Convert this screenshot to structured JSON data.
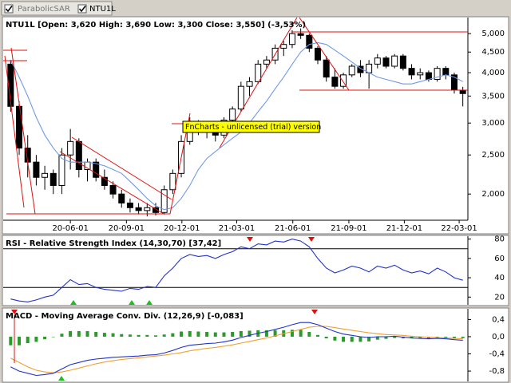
{
  "toolbar_checked": [
    true,
    true
  ],
  "watermark": "FnCharts - unlicensed (trial) version",
  "chart_data": [
    {
      "type": "candlestick",
      "title": "NTU1L [Open: 3,620  High: 3,690  Low: 3,300  Close: 3,550] (-3,53%)",
      "x": [
        "2020-02-24",
        "2020-03-09",
        "2020-03-23",
        "2020-04-06",
        "2020-04-20",
        "2020-05-04",
        "2020-05-18",
        "2020-06-01",
        "2020-06-15",
        "2020-06-29",
        "2020-07-13",
        "2020-07-27",
        "2020-08-10",
        "2020-08-24",
        "2020-09-07",
        "2020-09-21",
        "2020-10-05",
        "2020-10-19",
        "2020-11-02",
        "2020-11-16",
        "2020-11-30",
        "2020-12-14",
        "2020-12-28",
        "2021-01-11",
        "2021-01-25",
        "2021-02-08",
        "2021-02-22",
        "2021-03-08",
        "2021-03-22",
        "2021-04-05",
        "2021-04-19",
        "2021-05-03",
        "2021-05-17",
        "2021-05-31",
        "2021-06-14",
        "2021-06-28",
        "2021-07-12",
        "2021-07-26",
        "2021-08-09",
        "2021-08-23",
        "2021-09-06",
        "2021-09-20",
        "2021-10-04",
        "2021-10-18",
        "2021-11-01",
        "2021-11-15",
        "2021-11-29",
        "2021-12-13",
        "2021-12-27",
        "2022-01-10",
        "2022-01-24",
        "2022-02-07",
        "2022-02-21",
        "2022-03-07"
      ],
      "xlim": [
        "2020-02-17",
        "2022-03-14"
      ],
      "xticks": [
        {
          "value": "2020-06-01",
          "label": "20-06-01"
        },
        {
          "value": "2020-09-01",
          "label": "20-09-01"
        },
        {
          "value": "2020-12-01",
          "label": "20-12-01"
        },
        {
          "value": "2021-03-01",
          "label": "21-03-01"
        },
        {
          "value": "2021-06-01",
          "label": "21-06-01"
        },
        {
          "value": "2021-09-01",
          "label": "21-09-01"
        },
        {
          "value": "2021-12-01",
          "label": "21-12-01"
        },
        {
          "value": "2022-03-01",
          "label": "22-03-01"
        }
      ],
      "log_scale": true,
      "ylim": [
        1730,
        5480
      ],
      "yticks": [
        {
          "value": 2000,
          "label": "2,000"
        },
        {
          "value": 2500,
          "label": "2,500"
        },
        {
          "value": 3000,
          "label": "3,000"
        },
        {
          "value": 3500,
          "label": "3,500"
        },
        {
          "value": 4000,
          "label": "4,000"
        },
        {
          "value": 4500,
          "label": "4,500"
        },
        {
          "value": 5000,
          "label": "5,000"
        }
      ],
      "series": [
        {
          "name": "NTU1L",
          "color": "#000000",
          "open": [
            4200,
            3300,
            2600,
            2400,
            2200,
            2250,
            2100,
            2500,
            2700,
            2300,
            2400,
            2200,
            2100,
            2000,
            1900,
            1850,
            1820,
            1850,
            1800,
            2050,
            2250,
            2700,
            2900,
            2850,
            2900,
            2800,
            3050,
            3250,
            3700,
            3800,
            4200,
            4300,
            4600,
            4700,
            5000,
            4950,
            4600,
            4300,
            3900,
            3700,
            3950,
            4150,
            4000,
            4200,
            4350,
            4150,
            4400,
            4100,
            3950,
            4000,
            3850,
            4100,
            3950,
            3620
          ],
          "high": [
            4300,
            3400,
            2800,
            2500,
            2350,
            2300,
            2600,
            2900,
            2750,
            2450,
            2450,
            2300,
            2150,
            2050,
            1950,
            1900,
            1900,
            1900,
            2100,
            2300,
            2800,
            3100,
            3050,
            2950,
            3000,
            3100,
            3300,
            3800,
            3900,
            4300,
            4400,
            4700,
            4800,
            5100,
            5150,
            5000,
            4650,
            4400,
            4100,
            4000,
            4200,
            4300,
            4300,
            4450,
            4400,
            4450,
            4450,
            4200,
            4100,
            4050,
            4150,
            4150,
            4000,
            3690
          ],
          "low": [
            3200,
            2500,
            2200,
            2100,
            2050,
            2000,
            2000,
            2300,
            2200,
            2150,
            2150,
            2050,
            1950,
            1850,
            1800,
            1780,
            1760,
            1770,
            1780,
            2000,
            2200,
            2650,
            2800,
            2750,
            2700,
            2750,
            3000,
            3200,
            3500,
            3750,
            4100,
            4200,
            4400,
            4600,
            4850,
            4500,
            4200,
            3800,
            3650,
            3650,
            3900,
            3900,
            3650,
            4100,
            4100,
            4100,
            4050,
            3850,
            3850,
            3800,
            3800,
            3850,
            3550,
            3300
          ],
          "close": [
            3300,
            2600,
            2400,
            2200,
            2250,
            2100,
            2500,
            2700,
            2300,
            2400,
            2200,
            2100,
            2000,
            1900,
            1850,
            1820,
            1850,
            1800,
            2050,
            2250,
            2700,
            2900,
            2850,
            2900,
            2800,
            3050,
            3250,
            3700,
            3800,
            4200,
            4300,
            4600,
            4700,
            5000,
            4950,
            4600,
            4300,
            3900,
            3700,
            3950,
            4150,
            4000,
            4200,
            4350,
            4150,
            4400,
            4100,
            3950,
            4000,
            3850,
            4100,
            3950,
            3620,
            3550
          ]
        },
        {
          "name": "ParabolicSAR",
          "color": "#6f9be8",
          "values": [
            4300,
            3900,
            3500,
            3100,
            2800,
            2600,
            2450,
            2400,
            2400,
            2400,
            2380,
            2350,
            2300,
            2250,
            2150,
            2050,
            1950,
            1870,
            1830,
            1850,
            1950,
            2100,
            2300,
            2450,
            2550,
            2650,
            2750,
            2850,
            3000,
            3200,
            3400,
            3650,
            3900,
            4200,
            4500,
            4700,
            4750,
            4700,
            4550,
            4400,
            4250,
            4100,
            4000,
            3900,
            3850,
            3800,
            3750,
            3750,
            3800,
            3850,
            3900,
            3950,
            3900,
            3800
          ]
        }
      ]
    },
    {
      "type": "line",
      "title": "RSI - Relative Strength Index (14,30,70) [37,42]",
      "ylim": [
        12,
        83
      ],
      "yticks": [
        20,
        40,
        60,
        80
      ],
      "levels": [
        30,
        70
      ],
      "series": [
        {
          "name": "RSI",
          "color": "#2233cc",
          "values": [
            18,
            16,
            15,
            17,
            20,
            22,
            30,
            38,
            33,
            34,
            30,
            28,
            27,
            26,
            29,
            28,
            31,
            30,
            42,
            50,
            60,
            64,
            62,
            63,
            60,
            64,
            67,
            72,
            70,
            75,
            74,
            78,
            77,
            80,
            78,
            72,
            60,
            50,
            45,
            48,
            52,
            50,
            46,
            52,
            50,
            53,
            48,
            45,
            47,
            44,
            50,
            46,
            40,
            37.42
          ]
        }
      ]
    },
    {
      "type": "macd",
      "title": "MACD - Moving Average Conv. Div. (12,26,9) [-0,083]",
      "ylim": [
        -1.04,
        0.63
      ],
      "yticks": [
        {
          "value": -0.8,
          "label": "-0,8"
        },
        {
          "value": -0.4,
          "label": "-0,4"
        },
        {
          "value": 0,
          "label": "0,0"
        },
        {
          "value": 0.4,
          "label": "0,4"
        }
      ],
      "series": [
        {
          "name": "Histogram",
          "color": "#2a9a2a",
          "kind": "bar",
          "values": [
            -0.2,
            -0.2,
            -0.15,
            -0.12,
            -0.06,
            -0.01,
            0.07,
            0.13,
            0.13,
            0.13,
            0.11,
            0.09,
            0.08,
            0.06,
            0.05,
            0.04,
            0.04,
            0.03,
            0.05,
            0.08,
            0.12,
            0.13,
            0.12,
            0.11,
            0.1,
            0.1,
            0.11,
            0.13,
            0.14,
            0.15,
            0.15,
            0.15,
            0.15,
            0.16,
            0.16,
            0.11,
            0.04,
            -0.04,
            -0.09,
            -0.12,
            -0.12,
            -0.12,
            -0.11,
            -0.07,
            -0.05,
            -0.03,
            -0.04,
            -0.04,
            -0.04,
            -0.04,
            -0.02,
            -0.02,
            -0.03,
            -0.033
          ]
        },
        {
          "name": "Signal",
          "color": "#f0a030",
          "kind": "line",
          "values": [
            -0.5,
            -0.6,
            -0.7,
            -0.78,
            -0.82,
            -0.84,
            -0.82,
            -0.78,
            -0.73,
            -0.68,
            -0.63,
            -0.59,
            -0.56,
            -0.53,
            -0.51,
            -0.49,
            -0.47,
            -0.45,
            -0.43,
            -0.4,
            -0.37,
            -0.33,
            -0.3,
            -0.27,
            -0.25,
            -0.22,
            -0.19,
            -0.15,
            -0.11,
            -0.07,
            -0.03,
            0.02,
            0.07,
            0.12,
            0.17,
            0.22,
            0.24,
            0.24,
            0.21,
            0.18,
            0.15,
            0.12,
            0.09,
            0.07,
            0.05,
            0.04,
            0.03,
            0.01,
            0.0,
            -0.01,
            -0.02,
            -0.03,
            -0.04,
            -0.05
          ]
        },
        {
          "name": "MACD",
          "color": "#2233cc",
          "kind": "line",
          "values": [
            -0.7,
            -0.8,
            -0.85,
            -0.9,
            -0.88,
            -0.85,
            -0.75,
            -0.65,
            -0.6,
            -0.55,
            -0.52,
            -0.5,
            -0.48,
            -0.47,
            -0.46,
            -0.45,
            -0.43,
            -0.42,
            -0.38,
            -0.32,
            -0.25,
            -0.2,
            -0.18,
            -0.16,
            -0.15,
            -0.12,
            -0.08,
            -0.02,
            0.03,
            0.08,
            0.12,
            0.17,
            0.22,
            0.28,
            0.33,
            0.33,
            0.28,
            0.2,
            0.12,
            0.06,
            0.03,
            0.0,
            -0.02,
            0.0,
            0.0,
            0.01,
            -0.01,
            -0.03,
            -0.04,
            -0.05,
            -0.04,
            -0.05,
            -0.07,
            -0.083
          ]
        }
      ]
    }
  ]
}
